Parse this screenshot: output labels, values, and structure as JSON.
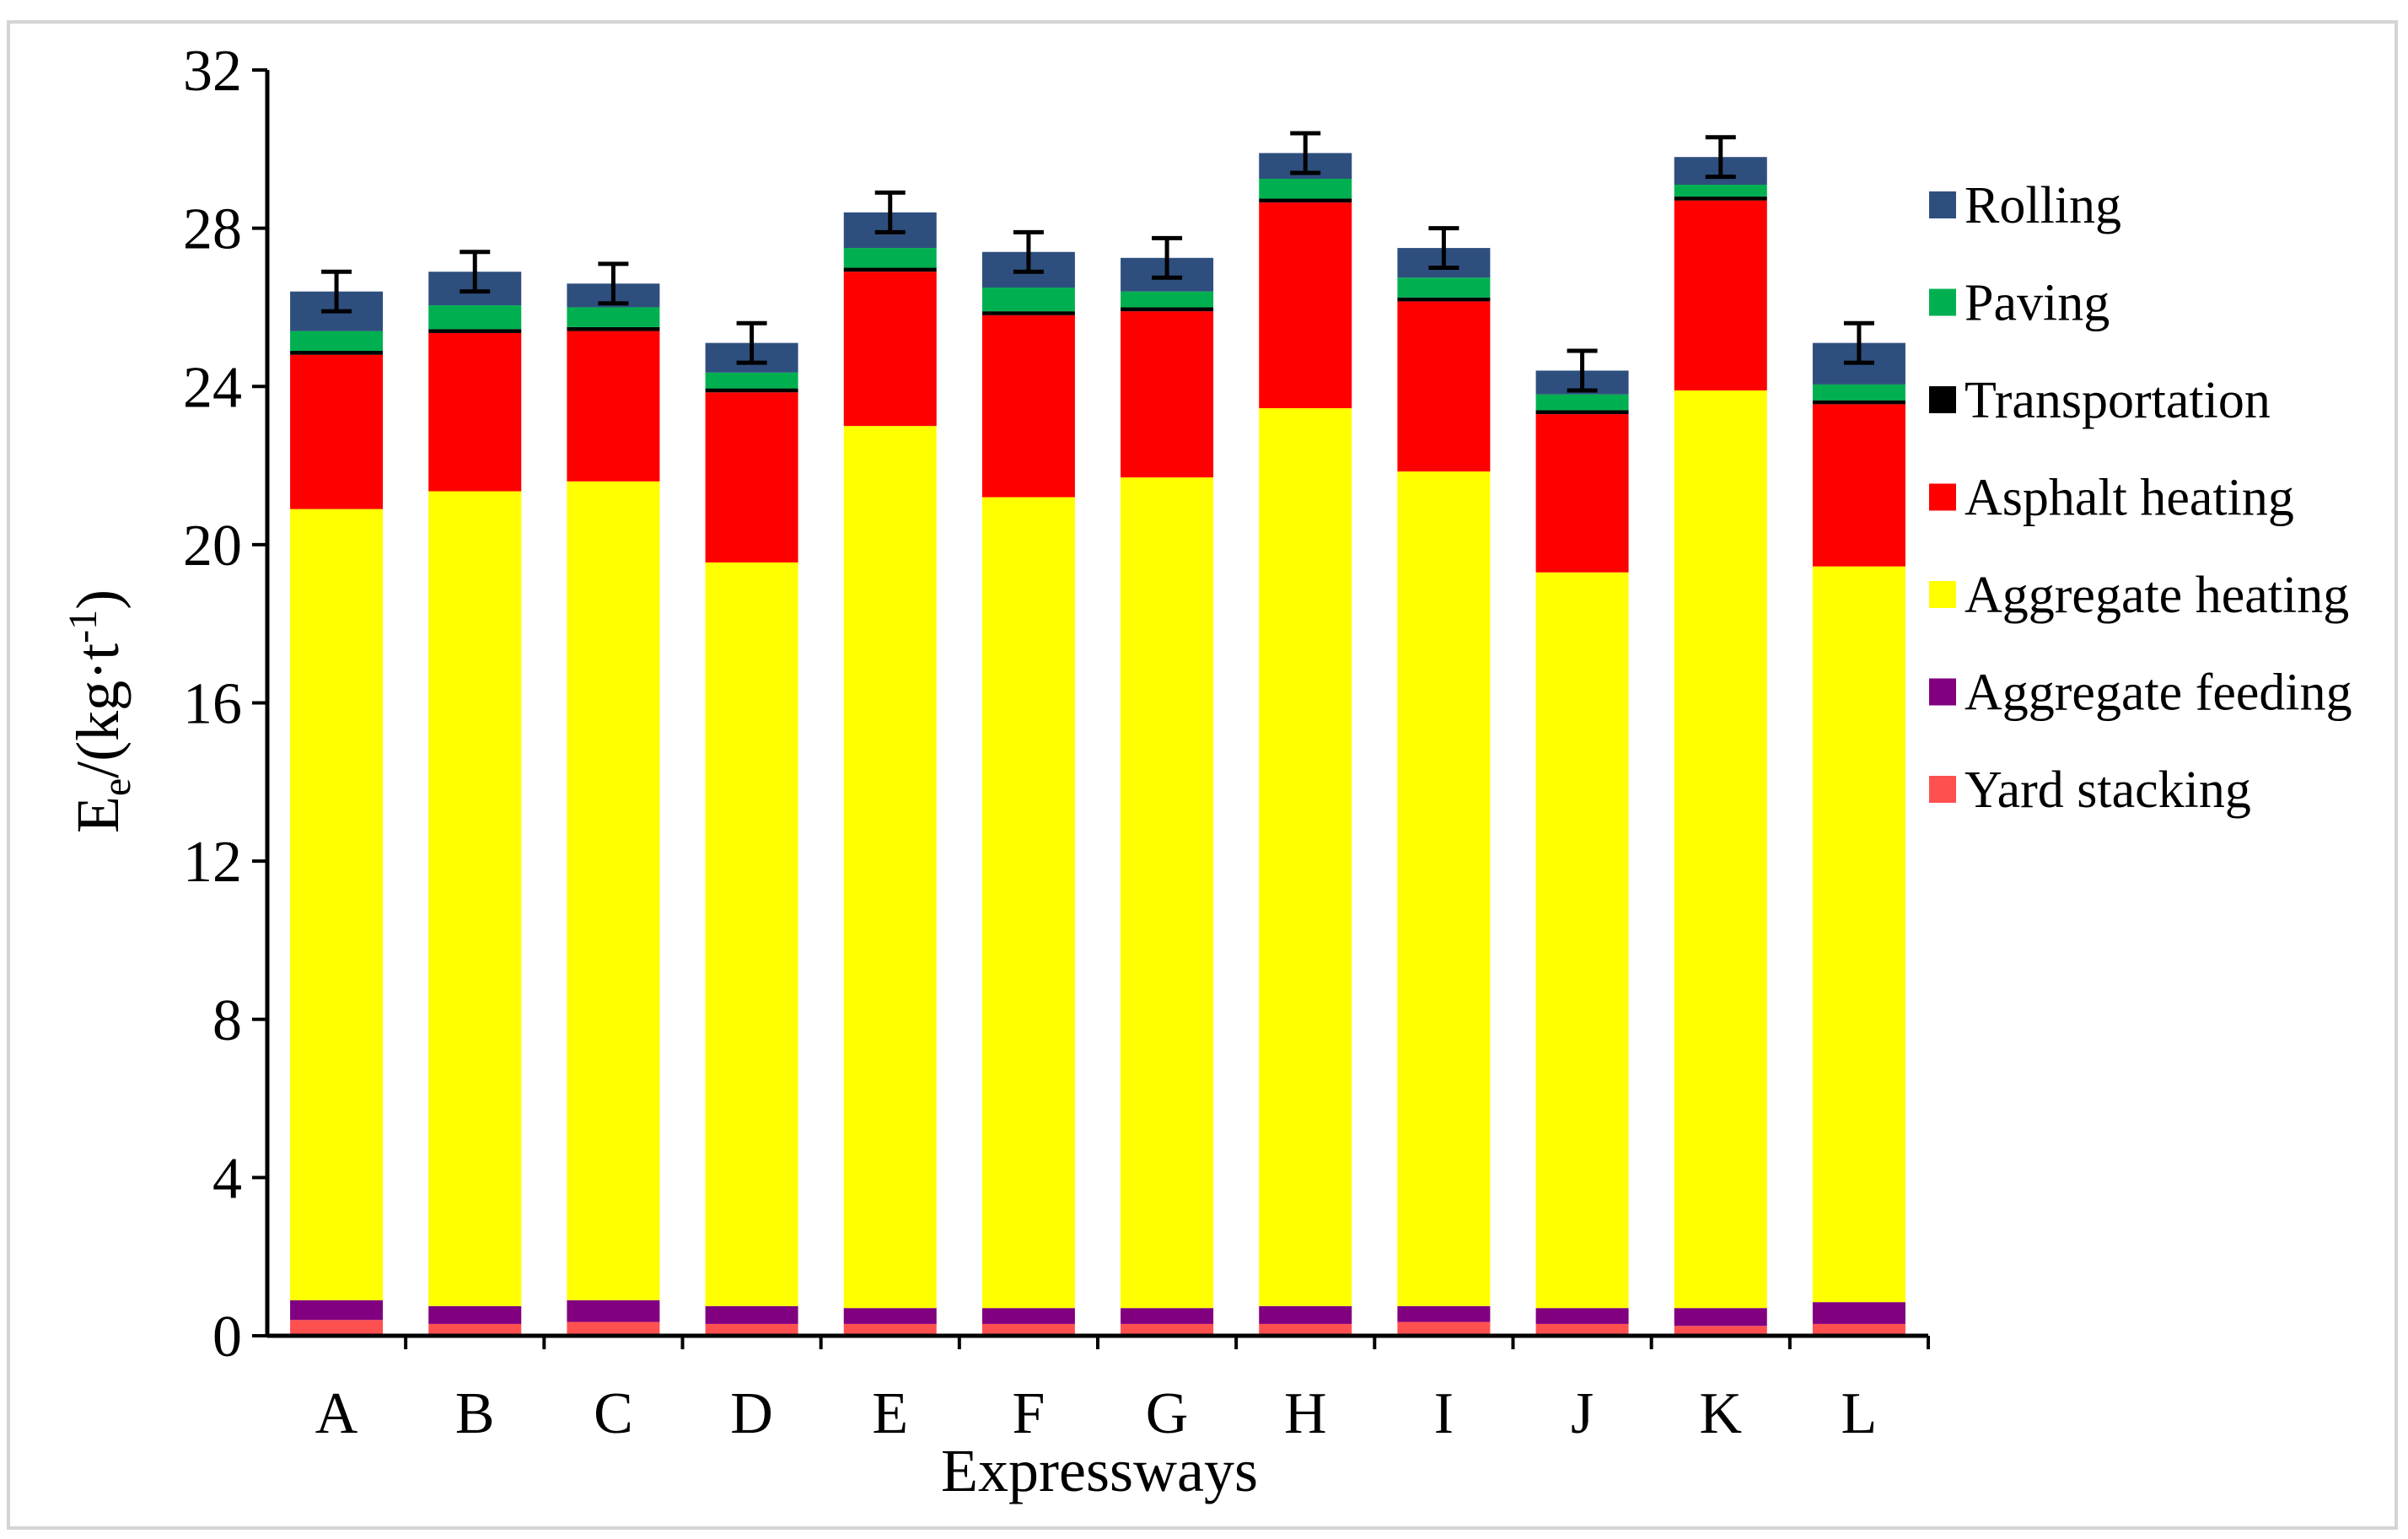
{
  "chart_data": {
    "type": "bar",
    "stacked": true,
    "title": "",
    "xlabel": "Expressways",
    "ylabel_main": "E",
    "ylabel_sub": "e",
    "ylabel_unit_prefix": "/(kg·t",
    "ylabel_sup": "-1",
    "ylabel_unit_suffix": ")",
    "ylim": [
      0,
      32
    ],
    "yticks": [
      0,
      4,
      8,
      12,
      16,
      20,
      24,
      28,
      32
    ],
    "grid": false,
    "legend_position": "right",
    "categories": [
      "A",
      "B",
      "C",
      "D",
      "E",
      "F",
      "G",
      "H",
      "I",
      "J",
      "K",
      "L"
    ],
    "series": [
      {
        "name": "Yard stacking",
        "color": "#ff5050",
        "values": [
          0.4,
          0.3,
          0.35,
          0.3,
          0.3,
          0.3,
          0.3,
          0.3,
          0.35,
          0.3,
          0.25,
          0.3
        ]
      },
      {
        "name": "Aggregate feeding",
        "color": "#800080",
        "values": [
          0.5,
          0.45,
          0.55,
          0.45,
          0.4,
          0.4,
          0.4,
          0.45,
          0.4,
          0.4,
          0.45,
          0.55
        ]
      },
      {
        "name": "Aggregate heating",
        "color": "#ffff00",
        "values": [
          20.0,
          20.6,
          20.7,
          18.8,
          22.3,
          20.5,
          21.0,
          22.7,
          21.1,
          18.6,
          23.2,
          18.6
        ]
      },
      {
        "name": "Asphalt heating",
        "color": "#ff0000",
        "values": [
          3.9,
          4.0,
          3.8,
          4.3,
          3.9,
          4.6,
          4.2,
          5.2,
          4.3,
          4.0,
          4.8,
          4.1
        ]
      },
      {
        "name": "Transportation",
        "color": "#000000",
        "values": [
          0.1,
          0.1,
          0.1,
          0.1,
          0.1,
          0.1,
          0.1,
          0.1,
          0.1,
          0.1,
          0.1,
          0.1
        ]
      },
      {
        "name": "Paving",
        "color": "#00b050",
        "values": [
          0.5,
          0.6,
          0.5,
          0.4,
          0.5,
          0.6,
          0.4,
          0.5,
          0.5,
          0.4,
          0.3,
          0.4
        ]
      },
      {
        "name": "Rolling",
        "color": "#2e4f7e",
        "values": [
          1.0,
          0.85,
          0.6,
          0.75,
          0.9,
          0.9,
          0.85,
          0.65,
          0.75,
          0.6,
          0.7,
          1.05
        ]
      }
    ],
    "error": [
      0.5,
      0.5,
      0.5,
      0.5,
      0.5,
      0.5,
      0.5,
      0.5,
      0.5,
      0.5,
      0.5,
      0.5
    ]
  }
}
